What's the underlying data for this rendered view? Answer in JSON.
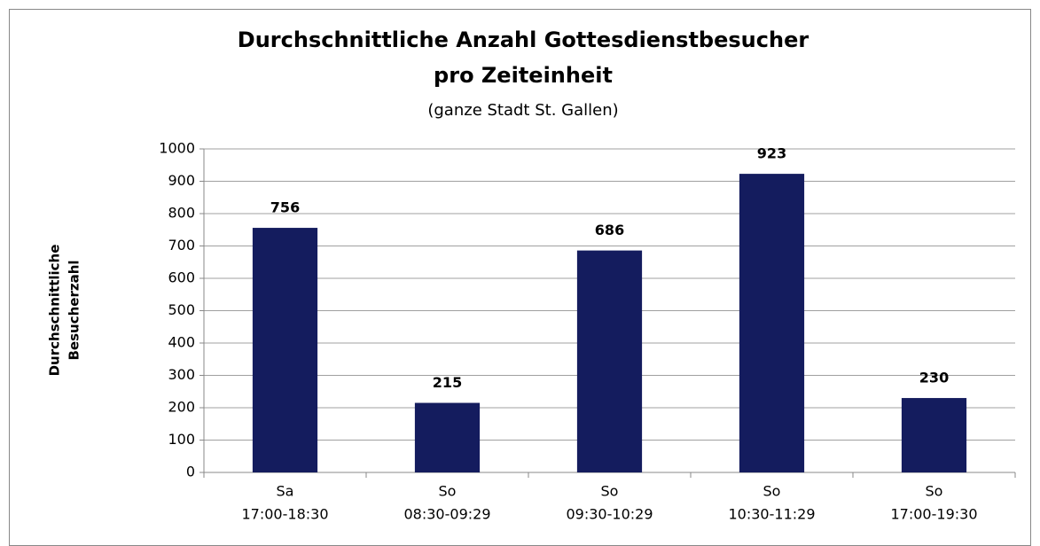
{
  "chart_data": {
    "type": "bar",
    "title": [
      "Durchschnittliche Anzahl Gottesdienstbesucher",
      "pro Zeiteinheit"
    ],
    "subtitle": "(ganze Stadt St. Gallen)",
    "y_label": [
      "Durchschnittliche",
      "Besucherzahl"
    ],
    "categories": [
      [
        "Sa",
        "17:00-18:30"
      ],
      [
        "So",
        "08:30-09:29"
      ],
      [
        "So",
        "09:30-10:29"
      ],
      [
        "So",
        "10:30-11:29"
      ],
      [
        "So",
        "17:00-19:30"
      ]
    ],
    "values": [
      756,
      215,
      686,
      923,
      230
    ],
    "color": "#141c5e",
    "ylim": [
      0,
      1000
    ],
    "yticks": [
      0,
      100,
      200,
      300,
      400,
      500,
      600,
      700,
      800,
      900,
      1000
    ],
    "grid": true
  }
}
